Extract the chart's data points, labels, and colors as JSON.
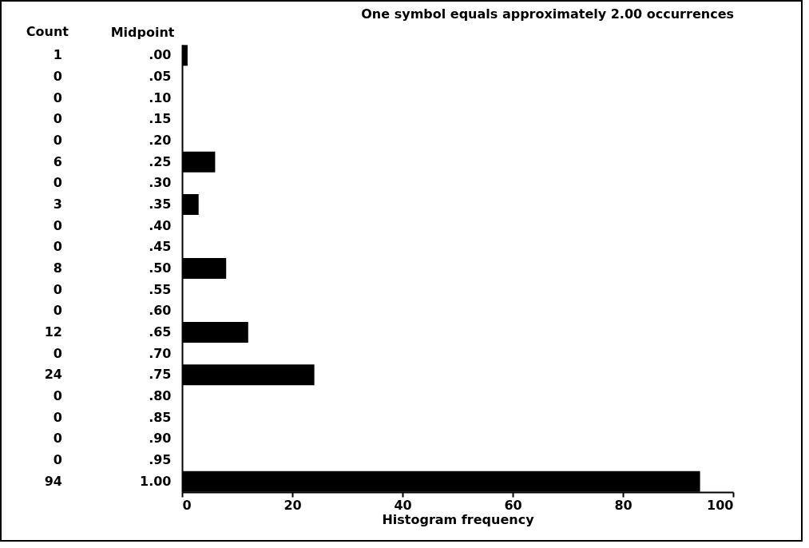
{
  "chart_data": {
    "type": "bar",
    "orientation": "horizontal",
    "title": "One symbol equals approximately 2.00 occurrences",
    "ylabel": "Midpoint",
    "xlabel": "Histogram frequency",
    "annotations": [
      "Count"
    ],
    "categories": [
      ".00",
      ".05",
      ".10",
      ".15",
      ".20",
      ".25",
      ".30",
      ".35",
      ".40",
      ".45",
      ".50",
      ".55",
      ".60",
      ".65",
      ".70",
      ".75",
      ".80",
      ".85",
      ".90",
      ".95",
      "1.00"
    ],
    "values": [
      1,
      0,
      0,
      0,
      0,
      6,
      0,
      3,
      0,
      0,
      8,
      0,
      0,
      12,
      0,
      24,
      0,
      0,
      0,
      0,
      94
    ],
    "color": "#000000",
    "xlim": [
      0,
      100
    ],
    "xticks": [
      0,
      20,
      40,
      60,
      80,
      100
    ],
    "grid": false,
    "data_labels": true
  }
}
